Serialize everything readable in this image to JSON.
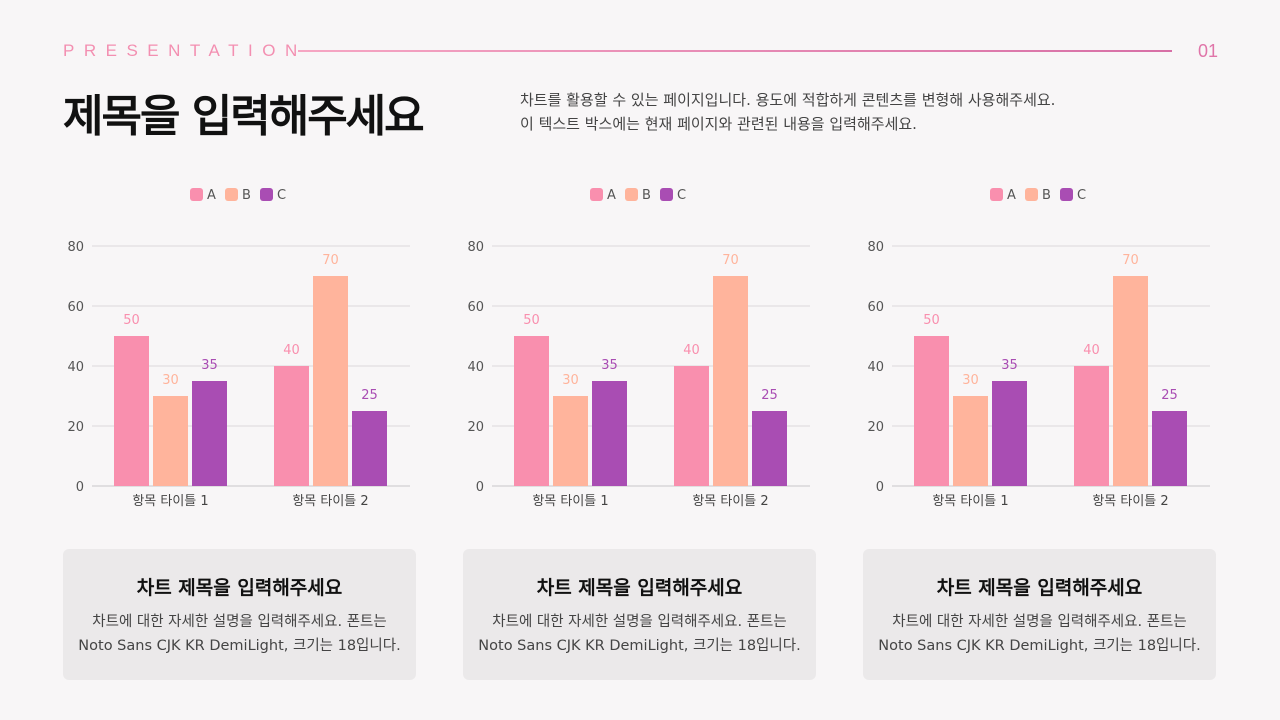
{
  "header": {
    "kicker": "PRESENTATION",
    "page_number": "01",
    "title": "제목을 입력해주세요",
    "description_lines": [
      "차트를 활용할 수 있는 페이지입니다. 용도에 적합하게 콘텐츠를 변형해 사용해주세요.",
      "이 텍스트 박스에는 현재 페이지와 관련된 내용을 입력해주세요."
    ]
  },
  "colors": {
    "A": "#f98fae",
    "B": "#ffb49c",
    "C": "#a94db3",
    "accent": "#f38fb1"
  },
  "chart_data": [
    {
      "type": "bar",
      "categories": [
        "항목 타이틀 1",
        "항목 타이틀 2"
      ],
      "series": [
        {
          "name": "A",
          "values": [
            50,
            40
          ]
        },
        {
          "name": "B",
          "values": [
            30,
            70
          ]
        },
        {
          "name": "C",
          "values": [
            35,
            25
          ]
        }
      ],
      "ylim": [
        0,
        80
      ],
      "yticks": [
        0,
        20,
        40,
        60,
        80
      ],
      "grid": true,
      "legend": "top"
    },
    {
      "type": "bar",
      "categories": [
        "항목 타이틀 1",
        "항목 타이틀 2"
      ],
      "series": [
        {
          "name": "A",
          "values": [
            50,
            40
          ]
        },
        {
          "name": "B",
          "values": [
            30,
            70
          ]
        },
        {
          "name": "C",
          "values": [
            35,
            25
          ]
        }
      ],
      "ylim": [
        0,
        80
      ],
      "yticks": [
        0,
        20,
        40,
        60,
        80
      ],
      "grid": true,
      "legend": "top"
    },
    {
      "type": "bar",
      "categories": [
        "항목 타이틀 1",
        "항목 타이틀 2"
      ],
      "series": [
        {
          "name": "A",
          "values": [
            50,
            40
          ]
        },
        {
          "name": "B",
          "values": [
            30,
            70
          ]
        },
        {
          "name": "C",
          "values": [
            35,
            25
          ]
        }
      ],
      "ylim": [
        0,
        80
      ],
      "yticks": [
        0,
        20,
        40,
        60,
        80
      ],
      "grid": true,
      "legend": "top"
    }
  ],
  "cards": [
    {
      "title": "차트 제목을 입력해주세요",
      "lines": [
        "차트에 대한 자세한 설명을 입력해주세요. 폰트는",
        "Noto Sans CJK KR DemiLight, 크기는 18입니다."
      ]
    },
    {
      "title": "차트 제목을 입력해주세요",
      "lines": [
        "차트에 대한 자세한 설명을 입력해주세요. 폰트는",
        "Noto Sans CJK KR DemiLight, 크기는 18입니다."
      ]
    },
    {
      "title": "차트 제목을 입력해주세요",
      "lines": [
        "차트에 대한 자세한 설명을 입력해주세요. 폰트는",
        "Noto Sans CJK KR DemiLight, 크기는 18입니다."
      ]
    }
  ]
}
